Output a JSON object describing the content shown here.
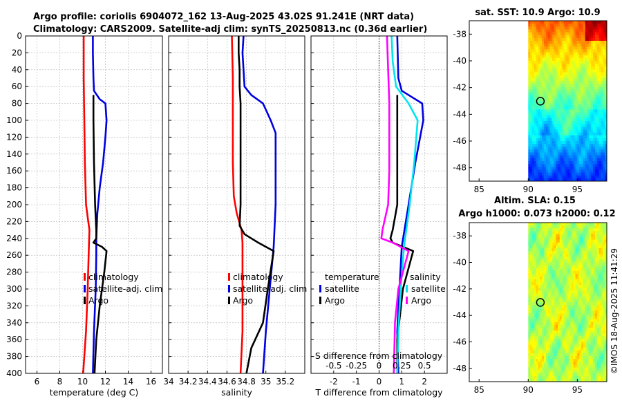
{
  "title_line1": "Argo profile: coriolis 6904072_162 13-Aug-2025 43.02S 91.241E (NRT data)",
  "title_line2": "Climatology: CARS2009. Satellite-adj clim: synTS_20250813.nc (0.36d earlier)",
  "colors": {
    "climatology": "#ff0000",
    "satellite": "#0000e0",
    "argo": "#000000",
    "argo_salinity_diff": "#ff00ff",
    "satellite_salinity_diff": "#00e5ee"
  },
  "chart_data": [
    {
      "id": "temperature",
      "type": "line",
      "xlabel": "temperature (deg C)",
      "xlim": [
        5,
        17
      ],
      "xticks": [
        6,
        8,
        10,
        12,
        14,
        16
      ],
      "xtick_labels": [
        "6",
        "8",
        "10",
        "12",
        "14",
        "16"
      ],
      "ylim": [
        0,
        400
      ],
      "yticks": [
        0,
        20,
        40,
        60,
        80,
        100,
        120,
        140,
        160,
        180,
        200,
        220,
        240,
        260,
        280,
        300,
        320,
        340,
        360,
        380,
        400
      ],
      "ytick_labels": [
        "0",
        "20",
        "40",
        "60",
        "80",
        "100",
        "120",
        "140",
        "160",
        "180",
        "200",
        "220",
        "240",
        "260",
        "280",
        "300",
        "320",
        "340",
        "360",
        "380",
        "400"
      ],
      "legend": [
        "climatology",
        "satellite-adj. clim",
        "Argo"
      ],
      "series": [
        {
          "name": "climatology",
          "color_key": "climatology",
          "depth": [
            0,
            50,
            100,
            150,
            200,
            215,
            230,
            250,
            300,
            350,
            400
          ],
          "values": [
            10.1,
            10.1,
            10.15,
            10.2,
            10.3,
            10.45,
            10.6,
            10.55,
            10.45,
            10.3,
            10.05
          ]
        },
        {
          "name": "satellite-adj. clim",
          "color_key": "satellite",
          "depth": [
            0,
            20,
            50,
            65,
            75,
            80,
            100,
            120,
            150,
            180,
            210,
            240,
            260,
            300,
            350,
            400
          ],
          "values": [
            10.9,
            10.9,
            10.95,
            11.0,
            11.5,
            12.0,
            12.1,
            12.0,
            11.8,
            11.5,
            11.3,
            11.2,
            11.2,
            11.15,
            11.0,
            10.9
          ]
        },
        {
          "name": "Argo",
          "color_key": "argo",
          "depth": [
            70,
            100,
            150,
            200,
            230,
            240,
            245,
            250,
            255,
            280,
            320,
            360,
            400
          ],
          "values": [
            10.95,
            10.95,
            11.0,
            11.1,
            11.2,
            11.2,
            10.95,
            11.7,
            12.1,
            11.9,
            11.5,
            11.2,
            11.05
          ]
        }
      ]
    },
    {
      "id": "salinity",
      "type": "line",
      "xlabel": "salinity",
      "xlim": [
        34,
        35.4
      ],
      "xticks": [
        34,
        34.2,
        34.4,
        34.6,
        34.8,
        35,
        35.2
      ],
      "xtick_labels": [
        "34",
        "34.2",
        "34.4",
        "34.6",
        "34.8",
        "35",
        "35.2"
      ],
      "ylim": [
        0,
        400
      ],
      "legend": [
        "climatology",
        "satellite-adj. clim",
        "Argo"
      ],
      "series": [
        {
          "name": "climatology",
          "color_key": "climatology",
          "depth": [
            0,
            50,
            100,
            150,
            190,
            210,
            230,
            245,
            300,
            350,
            400
          ],
          "values": [
            34.65,
            34.66,
            34.66,
            34.66,
            34.67,
            34.7,
            34.75,
            34.76,
            34.76,
            34.76,
            34.74
          ]
        },
        {
          "name": "satellite-adj. clim",
          "color_key": "satellite",
          "depth": [
            0,
            20,
            60,
            70,
            80,
            100,
            115,
            150,
            200,
            250,
            300,
            350,
            400
          ],
          "values": [
            34.77,
            34.76,
            34.78,
            34.85,
            34.97,
            35.05,
            35.1,
            35.1,
            35.1,
            35.08,
            35.04,
            35.0,
            34.97
          ]
        },
        {
          "name": "Argo",
          "color_key": "argo",
          "depth": [
            0,
            20,
            40,
            60,
            80,
            100,
            150,
            200,
            225,
            235,
            245,
            255,
            300,
            340,
            370,
            400
          ],
          "values": [
            34.72,
            34.72,
            34.73,
            34.73,
            34.74,
            34.74,
            34.74,
            34.74,
            34.73,
            34.78,
            34.92,
            35.08,
            35.02,
            34.97,
            34.85,
            34.8
          ]
        }
      ]
    },
    {
      "id": "differences",
      "type": "line",
      "xlabel": "T difference from climatology",
      "xlim": [
        -3,
        3
      ],
      "xticks": [
        -2,
        -1,
        0,
        1,
        2
      ],
      "xtick_labels": [
        "-2",
        "-1",
        "0",
        "1",
        "2"
      ],
      "top_axis_label": "S difference from climatology",
      "top_ticks": [
        -0.5,
        -0.25,
        0,
        0.25,
        0.5
      ],
      "top_tick_labels": [
        "-0.5",
        "-0.25",
        "0",
        "0.25",
        "0.5"
      ],
      "ylim": [
        0,
        400
      ],
      "legend_temperature_title": "temperature",
      "legend_salinity_title": "salinity",
      "legend_temperature": [
        "satellite",
        "Argo"
      ],
      "legend_salinity": [
        "satellite",
        "Argo"
      ],
      "series": [
        {
          "name": "T satellite",
          "color_key": "satellite",
          "depth": [
            0,
            50,
            65,
            80,
            100,
            150,
            200,
            250,
            300,
            350,
            400
          ],
          "values": [
            0.8,
            0.85,
            1.0,
            1.9,
            1.95,
            1.6,
            1.3,
            1.0,
            0.9,
            0.8,
            0.85
          ]
        },
        {
          "name": "T Argo",
          "color_key": "argo",
          "depth": [
            70,
            100,
            150,
            200,
            230,
            240,
            245,
            255,
            300,
            360,
            400
          ],
          "values": [
            0.8,
            0.8,
            0.8,
            0.8,
            0.6,
            0.5,
            0.6,
            1.5,
            1.05,
            0.8,
            0.8
          ]
        },
        {
          "name": "S satellite",
          "color_key": "satellite_salinity_diff",
          "depth": [
            0,
            30,
            60,
            80,
            100,
            150,
            200,
            250,
            300,
            350,
            400
          ],
          "values": [
            0.55,
            0.6,
            0.75,
            1.3,
            1.7,
            1.55,
            1.35,
            1.1,
            0.95,
            0.85,
            0.8
          ]
        },
        {
          "name": "S Argo",
          "color_key": "argo_salinity_diff",
          "depth": [
            0,
            40,
            80,
            120,
            160,
            200,
            230,
            240,
            245,
            255,
            300,
            340,
            400
          ],
          "values": [
            0.35,
            0.4,
            0.45,
            0.45,
            0.45,
            0.4,
            0.15,
            0.1,
            0.6,
            1.3,
            0.85,
            0.7,
            0.65
          ]
        }
      ]
    },
    {
      "id": "sst_map",
      "type": "heatmap",
      "title": "sat. SST: 10.9 Argo: 10.9",
      "xlim": [
        84,
        98
      ],
      "ylim": [
        -49,
        -37
      ],
      "xticks": [
        85,
        90,
        95
      ],
      "xtick_labels": [
        "85",
        "90",
        "95"
      ],
      "yticks": [
        -38,
        -40,
        -42,
        -44,
        -46,
        -48
      ],
      "ytick_labels": [
        "-38",
        "-40",
        "-42",
        "-44",
        "-46",
        "-48"
      ],
      "data_lon_min": 90,
      "marker": {
        "lon": 91.241,
        "lat": -43.02
      }
    },
    {
      "id": "sla_map",
      "type": "heatmap",
      "title_line1": "Altim. SLA: 0.15",
      "title_line2": "Argo h1000: 0.073 h2000: 0.12",
      "xlim": [
        84,
        98
      ],
      "ylim": [
        -49,
        -37
      ],
      "xticks": [
        85,
        90,
        95
      ],
      "xtick_labels": [
        "85",
        "90",
        "95"
      ],
      "yticks": [
        -38,
        -40,
        -42,
        -44,
        -46,
        -48
      ],
      "ytick_labels": [
        "-38",
        "-40",
        "-42",
        "-44",
        "-46",
        "-48"
      ],
      "data_lon_min": 90,
      "marker": {
        "lon": 91.241,
        "lat": -43.02
      }
    }
  ],
  "footer": "©IMOS 18-Aug-2025 11:41:29"
}
